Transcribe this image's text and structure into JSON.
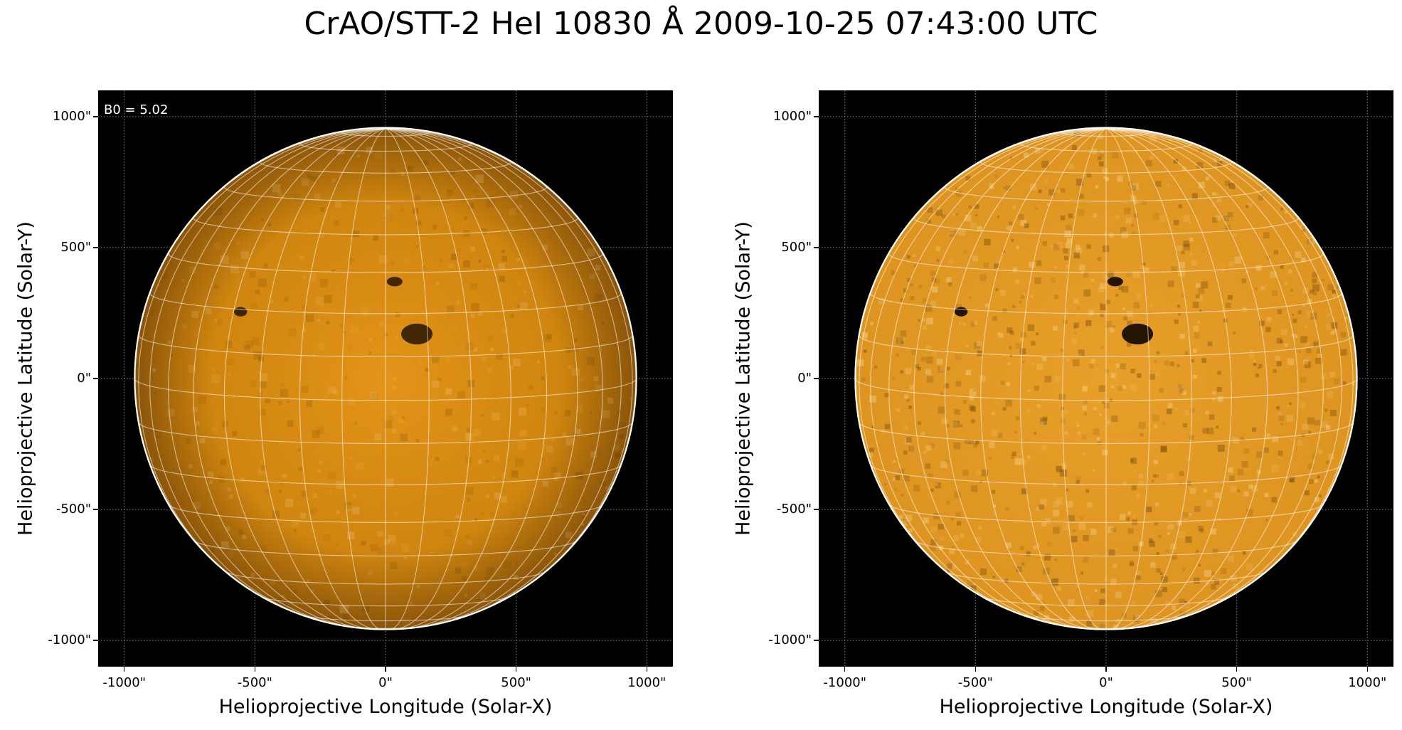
{
  "title": "CrAO/STT-2 HeI 10830 Å 2009-10-25 07:43:00 UTC",
  "colors": {
    "disk_center": "#e39418",
    "disk_mid": "#cf850f",
    "disk_limb": "#8a5409",
    "background": "#000000",
    "grid": "#ffffff"
  },
  "axis_range": [
    -1100,
    1100
  ],
  "solar_radius_arcsec": 960,
  "panels": [
    {
      "id": "left",
      "xlabel": "Helioprojective Longitude (Solar-X)",
      "ylabel": "Helioprojective Latitude (Solar-Y)",
      "annotation": "B0 = 5.02",
      "style": "limb-darkened",
      "xticks": [
        {
          "value": -1000,
          "label": "-1000\""
        },
        {
          "value": -500,
          "label": "-500\""
        },
        {
          "value": 0,
          "label": "0\""
        },
        {
          "value": 500,
          "label": "500\""
        },
        {
          "value": 1000,
          "label": "1000\""
        }
      ],
      "yticks": [
        {
          "value": 1000,
          "label": "1000\""
        },
        {
          "value": 500,
          "label": "500\""
        },
        {
          "value": 0,
          "label": "0\""
        },
        {
          "value": -500,
          "label": "-500\""
        },
        {
          "value": -1000,
          "label": "-1000\""
        }
      ]
    },
    {
      "id": "right",
      "xlabel": "Helioprojective Longitude (Solar-X)",
      "ylabel": "Helioprojective Latitude (Solar-Y)",
      "annotation": "",
      "style": "limb-corrected",
      "xticks": [
        {
          "value": -1000,
          "label": "-1000\""
        },
        {
          "value": -500,
          "label": "-500\""
        },
        {
          "value": 0,
          "label": "0\""
        },
        {
          "value": 500,
          "label": "500\""
        },
        {
          "value": 1000,
          "label": "1000\""
        }
      ],
      "yticks": [
        {
          "value": 1000,
          "label": "1000\""
        },
        {
          "value": 500,
          "label": "500\""
        },
        {
          "value": 0,
          "label": "0\""
        },
        {
          "value": -500,
          "label": "-500\""
        },
        {
          "value": -1000,
          "label": "-1000\""
        }
      ]
    }
  ],
  "features": [
    {
      "name": "sunspot-main",
      "x": 120,
      "y": 170,
      "rx": 60,
      "ry": 40
    },
    {
      "name": "spot-north",
      "x": 35,
      "y": 370,
      "rx": 30,
      "ry": 18
    },
    {
      "name": "spot-west",
      "x": -555,
      "y": 255,
      "rx": 25,
      "ry": 18
    }
  ]
}
